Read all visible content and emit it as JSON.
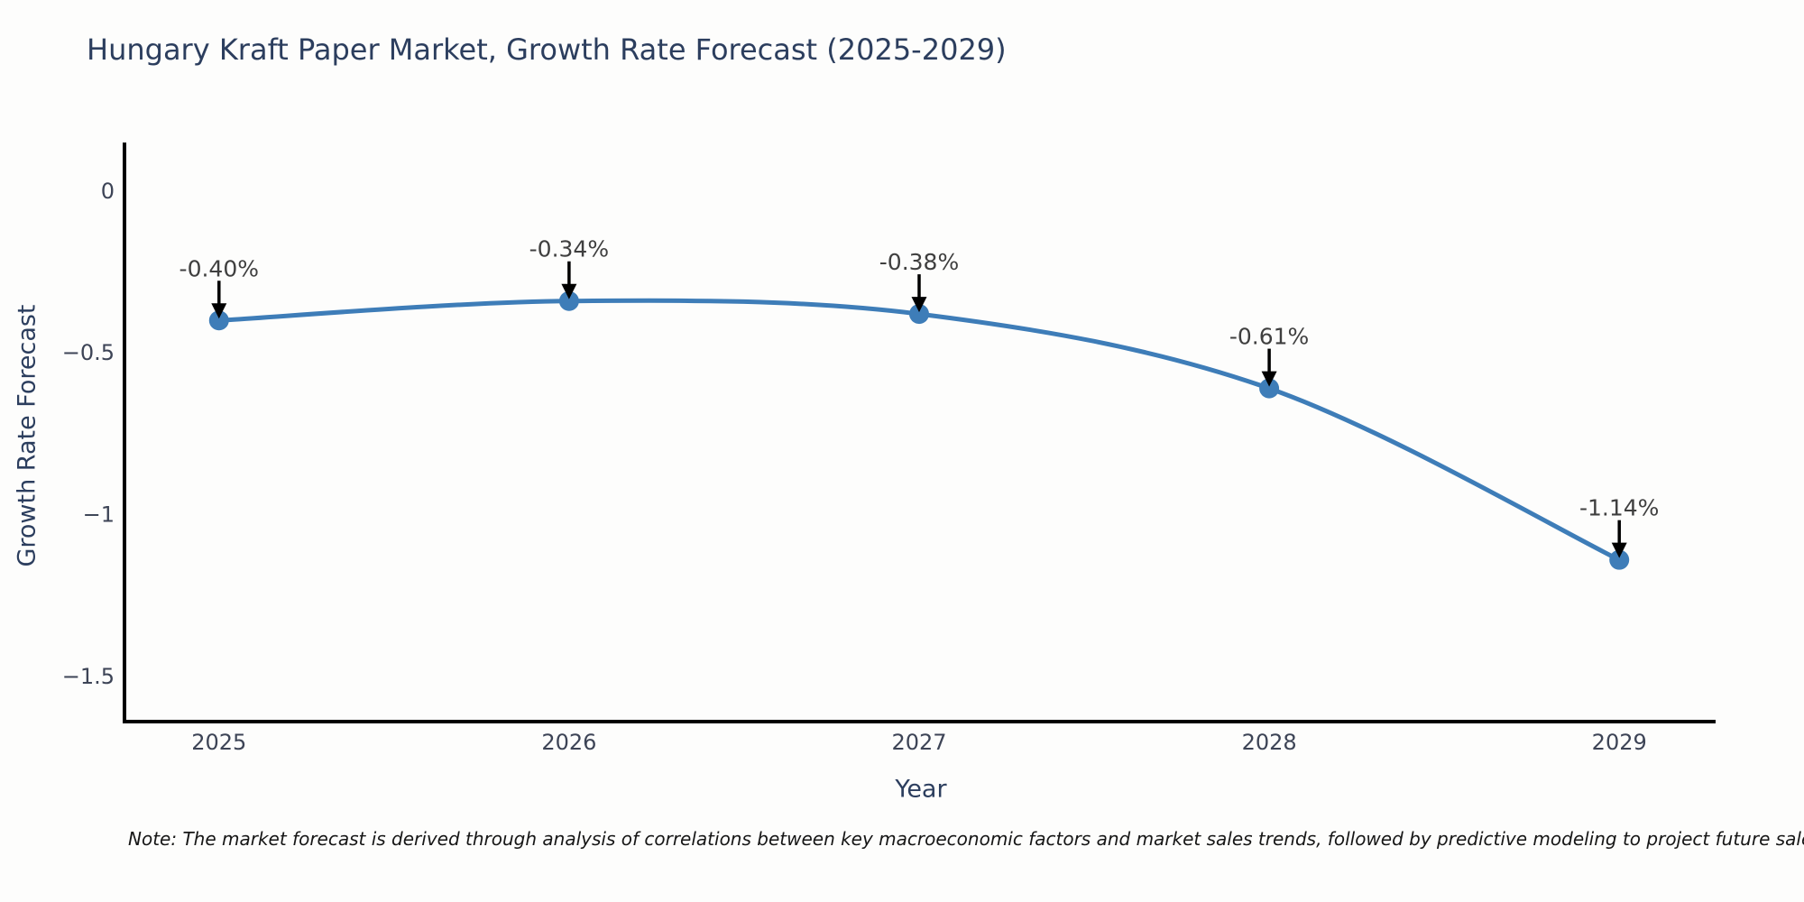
{
  "title": "Hungary Kraft Paper Market, Growth Rate Forecast (2025-2029)",
  "note": "Note: The market forecast is derived through analysis of correlations between key macroeconomic factors and market sales trends, followed by predictive modeling to project future sales.",
  "chart_data": {
    "type": "line",
    "title": "Hungary Kraft Paper Market, Growth Rate Forecast (2025-2029)",
    "xlabel": "Year",
    "ylabel": "Growth Rate Forecast",
    "x": [
      2025,
      2026,
      2027,
      2028,
      2029
    ],
    "values": [
      -0.4,
      -0.34,
      -0.38,
      -0.61,
      -1.14
    ],
    "point_labels": [
      "-0.40%",
      "-0.34%",
      "-0.38%",
      "-0.61%",
      "-1.14%"
    ],
    "xticks": {
      "values": [
        2025,
        2026,
        2027,
        2028,
        2029
      ],
      "labels": [
        "2025",
        "2026",
        "2027",
        "2028",
        "2029"
      ]
    },
    "yticks": {
      "values": [
        0,
        -0.5,
        -1,
        -1.5
      ],
      "labels": [
        "0",
        "−0.5",
        "−1",
        "−1.5"
      ]
    },
    "xlim": [
      2024.73,
      2029.27
    ],
    "ylim": [
      -1.64,
      0.15
    ],
    "grid": false,
    "legend": "none",
    "smooth_line": true,
    "line_color": "#3e7db8",
    "marker_color": "#3e7db8",
    "arrow_color": "#000000",
    "spine_color": "#000000"
  },
  "colors": {
    "title": "#2c3e5e",
    "axis_label": "#2c3e5e",
    "tick_label": "#3d4456",
    "annotation_text": "#3f3f3f",
    "note_text": "#161616",
    "background": "#fdfdfc"
  }
}
